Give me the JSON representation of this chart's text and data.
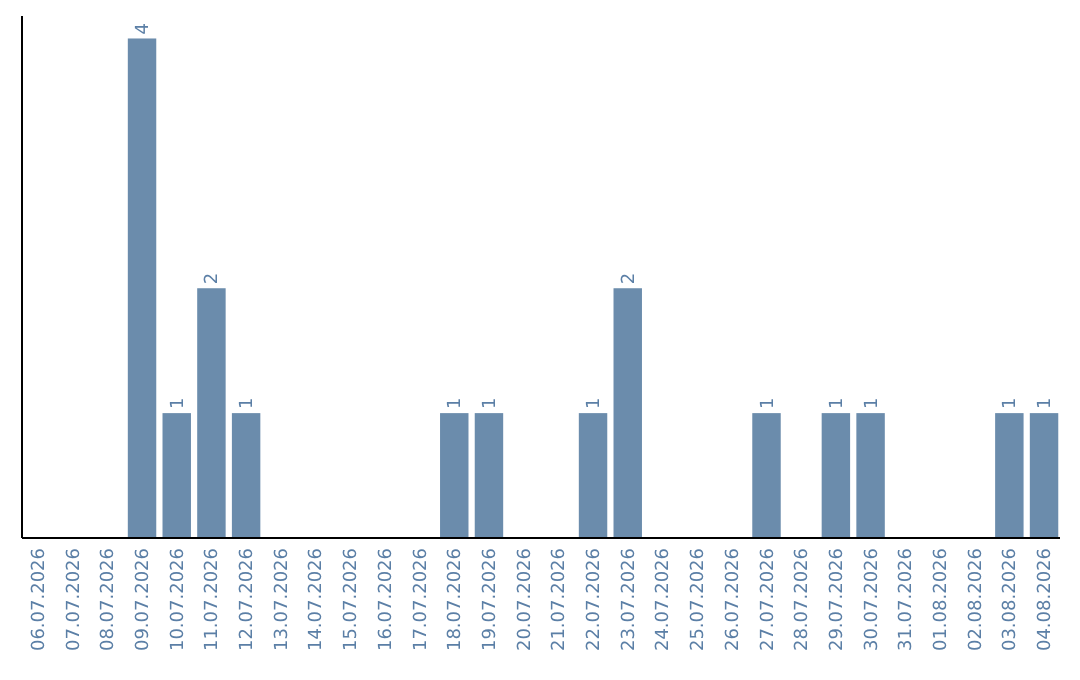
{
  "chart_data": {
    "type": "bar",
    "categories": [
      "06.07.2026",
      "07.07.2026",
      "08.07.2026",
      "09.07.2026",
      "10.07.2026",
      "11.07.2026",
      "12.07.2026",
      "13.07.2026",
      "14.07.2026",
      "15.07.2026",
      "16.07.2026",
      "17.07.2026",
      "18.07.2026",
      "19.07.2026",
      "20.07.2026",
      "21.07.2026",
      "22.07.2026",
      "23.07.2026",
      "24.07.2026",
      "25.07.2026",
      "26.07.2026",
      "27.07.2026",
      "28.07.2026",
      "29.07.2026",
      "30.07.2026",
      "31.07.2026",
      "01.08.2026",
      "02.08.2026",
      "03.08.2026",
      "04.08.2026"
    ],
    "values": [
      0,
      0,
      0,
      4,
      1,
      2,
      1,
      0,
      0,
      0,
      0,
      0,
      1,
      1,
      0,
      0,
      1,
      2,
      0,
      0,
      0,
      1,
      0,
      1,
      1,
      0,
      0,
      0,
      1,
      1
    ],
    "value_labels": [
      null,
      null,
      null,
      "4",
      "1",
      "2",
      "1",
      null,
      null,
      null,
      null,
      null,
      "1",
      "1",
      null,
      null,
      "1",
      "2",
      null,
      null,
      null,
      "1",
      null,
      "1",
      "1",
      null,
      null,
      null,
      "1",
      "1"
    ],
    "color": "#6b8cac"
  }
}
